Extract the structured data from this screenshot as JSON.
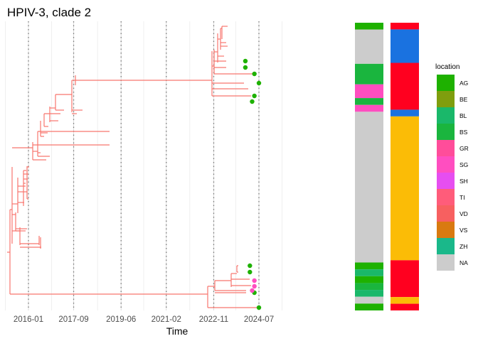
{
  "chart_data": {
    "type": "phylogenetic-tree",
    "title": "HPIV-3, clade 2",
    "xlabel": "Time",
    "x_ticks": [
      "2016-01",
      "2017-09",
      "2019-06",
      "2021-02",
      "2022-11",
      "2024-07"
    ],
    "x_range": [
      "2015-01",
      "2025-12"
    ],
    "grid": true,
    "tree_color": "#f8766d",
    "tips": [
      {
        "date": "2024-03",
        "location": "AG"
      },
      {
        "date": "2024-03",
        "location": "AG"
      },
      {
        "date": "2024-07",
        "location": "AG"
      },
      {
        "date": "2024-05",
        "location": "SG"
      },
      {
        "date": "2024-05",
        "location": "SG"
      },
      {
        "date": "2024-05",
        "location": "AG"
      },
      {
        "date": "2024-04",
        "location": "SG"
      },
      {
        "date": "2024-01",
        "location": "AG"
      },
      {
        "date": "2024-01",
        "location": "AG"
      },
      {
        "date": "2024-05",
        "location": "AG"
      },
      {
        "date": "2024-05",
        "location": "AG"
      },
      {
        "date": "2024-04",
        "location": "AG"
      },
      {
        "date": "2024-07",
        "location": "AG"
      }
    ],
    "location_legend": {
      "title": "location",
      "entries": [
        {
          "label": "AG",
          "color": "#1eb100"
        },
        {
          "label": "BE",
          "color": "#7f9e0e"
        },
        {
          "label": "BL",
          "color": "#1ab86a"
        },
        {
          "label": "BS",
          "color": "#1ab53e"
        },
        {
          "label": "GR",
          "color": "#ff4d9a"
        },
        {
          "label": "SG",
          "color": "#ff4ec0"
        },
        {
          "label": "SH",
          "color": "#e64ef0"
        },
        {
          "label": "TI",
          "color": "#ff5c7a"
        },
        {
          "label": "VD",
          "color": "#f76060"
        },
        {
          "label": "VS",
          "color": "#d97a10"
        },
        {
          "label": "ZH",
          "color": "#1ab88a"
        },
        {
          "label": "NA",
          "color": "#cccccc"
        }
      ]
    },
    "column1_segments": [
      {
        "color": "#1eb100",
        "size": 1.0
      },
      {
        "color": "#cccccc",
        "size": 5.0
      },
      {
        "color": "#1ab53e",
        "size": 3.0
      },
      {
        "color": "#ff4ec0",
        "size": 2.0
      },
      {
        "color": "#1ab53e",
        "size": 1.0
      },
      {
        "color": "#ff4ec0",
        "size": 1.0
      },
      {
        "color": "#cccccc",
        "size": 22.0
      },
      {
        "color": "#1eb100",
        "size": 1.0
      },
      {
        "color": "#1ab86a",
        "size": 1.0
      },
      {
        "color": "#1eb100",
        "size": 1.0
      },
      {
        "color": "#1ab53e",
        "size": 1.0
      },
      {
        "color": "#1ab86a",
        "size": 1.0
      },
      {
        "color": "#cccccc",
        "size": 1.0
      },
      {
        "color": "#1eb100",
        "size": 1.0
      }
    ],
    "column2_segments": [
      {
        "color": "#ff001f",
        "size": 1.0
      },
      {
        "color": "#1a72e0",
        "size": 5.0
      },
      {
        "color": "#ff001f",
        "size": 7.0
      },
      {
        "color": "#1a72e0",
        "size": 1.0
      },
      {
        "color": "#fbbc06",
        "size": 21.5
      },
      {
        "color": "#ff001f",
        "size": 5.5
      },
      {
        "color": "#fbbc06",
        "size": 1.0
      },
      {
        "color": "#ff001f",
        "size": 1.0
      }
    ]
  }
}
